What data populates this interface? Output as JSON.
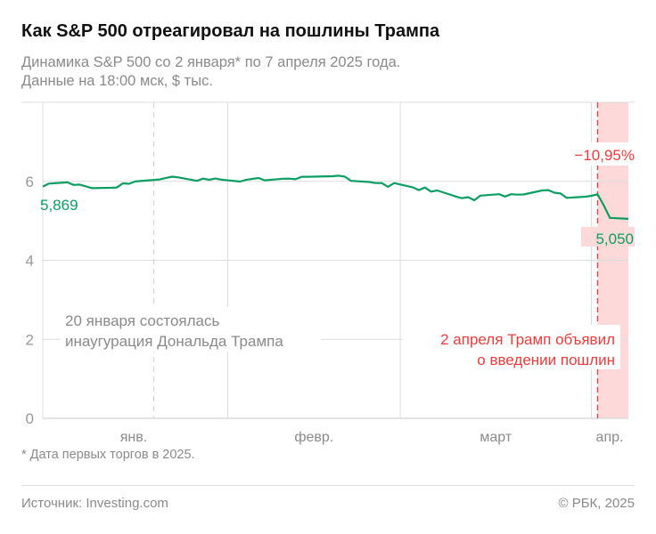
{
  "title": "Как S&P 500 отреагировал на пошлины Трампа",
  "subtitle_line1": "Динамика S&P 500 со 2 января* по 7 апреля 2025 года.",
  "subtitle_line2": "Данные на 18:00 мск, $ тыс.",
  "footnote": "* Дата первых торгов в 2025.",
  "source": "Источник: Investing.com",
  "copyright": "© РБК, 2025",
  "colors": {
    "line": "#0a9e63",
    "accent": "#ee3b3b",
    "shade": "#fdd9d9",
    "grid": "#dcdcdc",
    "text": "#8a8a8a"
  },
  "chart_data": {
    "type": "line",
    "xaxis_type": "date",
    "xlim": [
      "2025-01-02",
      "2025-04-07"
    ],
    "ylim": [
      0,
      8
    ],
    "yticks": [
      0,
      2,
      4,
      6
    ],
    "ytick_labels": [
      "0",
      "2",
      "4",
      "6"
    ],
    "xtick_labels": [
      {
        "label": "янв.",
        "month": "2025-01"
      },
      {
        "label": "февр.",
        "month": "2025-02"
      },
      {
        "label": "март",
        "month": "2025-03"
      },
      {
        "label": "апр.",
        "month": "2025-04"
      }
    ],
    "grid": true,
    "series": [
      {
        "x": [
          "2025-01-02",
          "2025-01-03",
          "2025-01-06",
          "2025-01-07",
          "2025-01-08",
          "2025-01-10",
          "2025-01-13",
          "2025-01-14",
          "2025-01-15",
          "2025-01-16",
          "2025-01-17",
          "2025-01-21",
          "2025-01-22",
          "2025-01-23",
          "2025-01-24",
          "2025-01-27",
          "2025-01-28",
          "2025-01-29",
          "2025-01-30",
          "2025-01-31",
          "2025-02-03",
          "2025-02-04",
          "2025-02-05",
          "2025-02-06",
          "2025-02-07",
          "2025-02-10",
          "2025-02-11",
          "2025-02-12",
          "2025-02-13",
          "2025-02-14",
          "2025-02-18",
          "2025-02-19",
          "2025-02-20",
          "2025-02-21",
          "2025-02-24",
          "2025-02-25",
          "2025-02-26",
          "2025-02-27",
          "2025-02-28",
          "2025-03-03",
          "2025-03-04",
          "2025-03-05",
          "2025-03-06",
          "2025-03-07",
          "2025-03-10",
          "2025-03-11",
          "2025-03-12",
          "2025-03-13",
          "2025-03-14",
          "2025-03-17",
          "2025-03-18",
          "2025-03-19",
          "2025-03-20",
          "2025-03-21",
          "2025-03-24",
          "2025-03-25",
          "2025-03-26",
          "2025-03-27",
          "2025-03-28",
          "2025-03-31",
          "2025-04-01",
          "2025-04-02",
          "2025-04-03",
          "2025-04-04",
          "2025-04-07"
        ],
        "y": [
          5.869,
          5.942,
          5.975,
          5.909,
          5.918,
          5.827,
          5.836,
          5.843,
          5.95,
          5.937,
          5.997,
          6.049,
          6.086,
          6.119,
          6.101,
          6.012,
          6.068,
          6.039,
          6.071,
          6.041,
          5.995,
          6.038,
          6.061,
          6.084,
          6.026,
          6.066,
          6.069,
          6.052,
          6.115,
          6.115,
          6.13,
          6.144,
          6.118,
          6.013,
          5.983,
          5.955,
          5.956,
          5.862,
          5.955,
          5.85,
          5.778,
          5.843,
          5.739,
          5.77,
          5.615,
          5.572,
          5.599,
          5.522,
          5.639,
          5.675,
          5.615,
          5.675,
          5.663,
          5.668,
          5.768,
          5.777,
          5.712,
          5.693,
          5.581,
          5.612,
          5.633,
          5.671,
          5.397,
          5.074,
          5.05
        ]
      }
    ],
    "labels": {
      "start_value": "5,869",
      "end_value": "5,050",
      "change": "−10,95%"
    },
    "annotations": [
      {
        "date": "2025-01-20",
        "line1": "20 января состоялась",
        "line2": "инаугурация Дональда Трампа"
      },
      {
        "date": "2025-04-02",
        "line1": "2 апреля Трамп объявил",
        "line2": "о введении пошлин",
        "shaded_to": "2025-04-07"
      }
    ]
  }
}
